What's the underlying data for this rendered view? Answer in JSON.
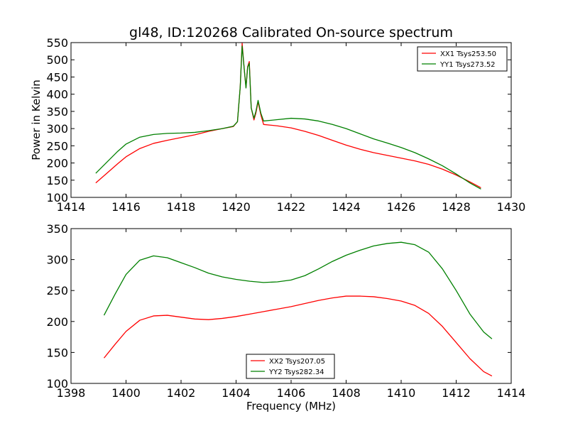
{
  "chart_data": [
    {
      "type": "line",
      "title": "gl48, ID:120268 Calibrated On-source spectrum",
      "xlabel": "",
      "ylabel": "Power in Kelvin",
      "xlim": [
        1414,
        1430
      ],
      "ylim": [
        100,
        550
      ],
      "xticks": [
        "1414",
        "1416",
        "1418",
        "1420",
        "1422",
        "1424",
        "1426",
        "1428",
        "1430"
      ],
      "yticks": [
        "100",
        "150",
        "200",
        "250",
        "300",
        "350",
        "400",
        "450",
        "500",
        "550"
      ],
      "legend_position": "top-right",
      "series": [
        {
          "name": "XX1 Tsys253.50",
          "color": "#ff0000",
          "x": [
            1414.9,
            1415.3,
            1415.7,
            1416.0,
            1416.5,
            1417.0,
            1417.5,
            1418.0,
            1418.5,
            1419.0,
            1419.5,
            1419.9,
            1420.05,
            1420.15,
            1420.22,
            1420.3,
            1420.36,
            1420.42,
            1420.48,
            1420.55,
            1420.65,
            1420.72,
            1420.8,
            1420.9,
            1421.0,
            1421.5,
            1422.0,
            1422.5,
            1423.0,
            1423.5,
            1424.0,
            1424.5,
            1425.0,
            1425.5,
            1426.0,
            1426.5,
            1427.0,
            1427.5,
            1428.0,
            1428.5,
            1428.9
          ],
          "values": [
            142,
            170,
            198,
            218,
            242,
            257,
            266,
            274,
            282,
            292,
            300,
            306,
            320,
            420,
            548,
            470,
            420,
            480,
            495,
            360,
            325,
            345,
            378,
            340,
            312,
            308,
            302,
            292,
            280,
            266,
            252,
            240,
            230,
            222,
            214,
            206,
            196,
            182,
            165,
            145,
            128
          ]
        },
        {
          "name": "YY1 Tsys273.52",
          "color": "#008000",
          "x": [
            1414.9,
            1415.3,
            1415.7,
            1416.0,
            1416.5,
            1417.0,
            1417.5,
            1418.0,
            1418.5,
            1419.0,
            1419.5,
            1419.9,
            1420.05,
            1420.15,
            1420.22,
            1420.3,
            1420.36,
            1420.42,
            1420.48,
            1420.55,
            1420.65,
            1420.72,
            1420.8,
            1420.9,
            1421.0,
            1421.5,
            1422.0,
            1422.5,
            1423.0,
            1423.5,
            1424.0,
            1424.5,
            1425.0,
            1425.5,
            1426.0,
            1426.5,
            1427.0,
            1427.5,
            1428.0,
            1428.5,
            1428.9
          ],
          "values": [
            170,
            202,
            234,
            255,
            275,
            283,
            286,
            287,
            289,
            294,
            300,
            307,
            320,
            420,
            540,
            470,
            418,
            478,
            490,
            360,
            330,
            350,
            382,
            345,
            322,
            326,
            330,
            328,
            322,
            312,
            300,
            285,
            270,
            258,
            245,
            230,
            212,
            192,
            168,
            142,
            124
          ]
        }
      ]
    },
    {
      "type": "line",
      "title": "",
      "xlabel": "Frequency (MHz)",
      "ylabel": "",
      "xlim": [
        1398,
        1414
      ],
      "ylim": [
        100,
        350
      ],
      "xticks": [
        "1398",
        "1400",
        "1402",
        "1404",
        "1406",
        "1408",
        "1410",
        "1412",
        "1414"
      ],
      "yticks": [
        "100",
        "150",
        "200",
        "250",
        "300",
        "350"
      ],
      "legend_position": "lower-center",
      "series": [
        {
          "name": "XX2 Tsys207.05",
          "color": "#ff0000",
          "x": [
            1399.2,
            1399.6,
            1400.0,
            1400.5,
            1401.0,
            1401.5,
            1402.0,
            1402.5,
            1403.0,
            1403.5,
            1404.0,
            1404.5,
            1405.0,
            1405.5,
            1406.0,
            1406.5,
            1407.0,
            1407.5,
            1408.0,
            1408.5,
            1409.0,
            1409.5,
            1410.0,
            1410.5,
            1411.0,
            1411.5,
            1412.0,
            1412.5,
            1413.0,
            1413.3
          ],
          "values": [
            141,
            163,
            184,
            202,
            209,
            210,
            207,
            204,
            203,
            205,
            208,
            212,
            216,
            220,
            224,
            229,
            234,
            238,
            241,
            241,
            240,
            237,
            233,
            226,
            213,
            192,
            166,
            140,
            119,
            112
          ]
        },
        {
          "name": "YY2 Tsys282.34",
          "color": "#008000",
          "x": [
            1399.2,
            1399.6,
            1400.0,
            1400.5,
            1401.0,
            1401.5,
            1402.0,
            1402.5,
            1403.0,
            1403.5,
            1404.0,
            1404.5,
            1405.0,
            1405.5,
            1406.0,
            1406.5,
            1407.0,
            1407.5,
            1408.0,
            1408.5,
            1409.0,
            1409.5,
            1410.0,
            1410.5,
            1411.0,
            1411.5,
            1412.0,
            1412.5,
            1413.0,
            1413.3
          ],
          "values": [
            210,
            244,
            276,
            299,
            306,
            303,
            295,
            287,
            278,
            272,
            268,
            265,
            263,
            264,
            267,
            274,
            285,
            297,
            307,
            315,
            322,
            326,
            328,
            324,
            312,
            285,
            250,
            212,
            183,
            172
          ]
        }
      ]
    }
  ]
}
